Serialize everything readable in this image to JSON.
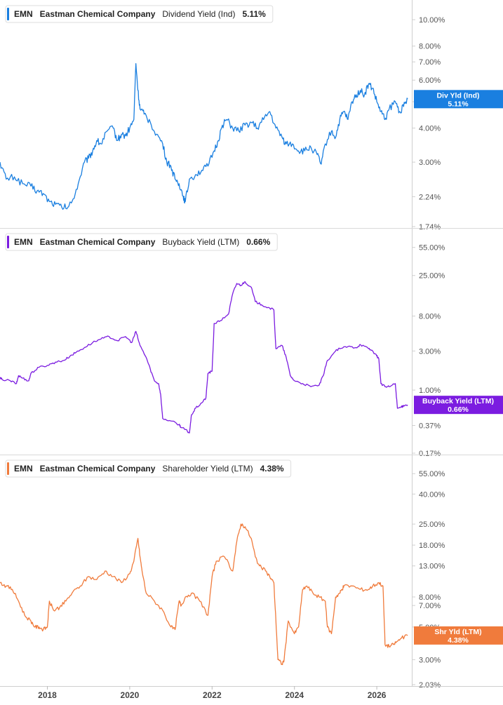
{
  "chart_data": [
    {
      "type": "line",
      "ticker": "EMN",
      "company": "Eastman Chemical Company",
      "metric": "Dividend Yield (Ind)",
      "current": "5.11%",
      "color": "#1a7fe0",
      "scale": "log",
      "ylim": [
        1.74,
        11.0
      ],
      "yticks": [
        "10.00%",
        "8.00%",
        "7.00%",
        "6.00%",
        "5.00%",
        "4.00%",
        "3.00%",
        "2.24%",
        "1.74%"
      ],
      "tag_lines": [
        "Div Yld (Ind)",
        "5.11%"
      ],
      "tag_value": 5.11,
      "series": {
        "x": [
          2016.85,
          2017.0,
          2017.2,
          2017.4,
          2017.6,
          2017.75,
          2017.9,
          2018.05,
          2018.2,
          2018.35,
          2018.5,
          2018.6,
          2018.75,
          2018.9,
          2019.0,
          2019.1,
          2019.2,
          2019.3,
          2019.45,
          2019.6,
          2019.7,
          2019.8,
          2019.9,
          2020.0,
          2020.1,
          2020.15,
          2020.2,
          2020.25,
          2020.35,
          2020.5,
          2020.65,
          2020.8,
          2020.9,
          2021.0,
          2021.1,
          2021.2,
          2021.3,
          2021.35,
          2021.45,
          2021.6,
          2021.75,
          2021.9,
          2022.05,
          2022.15,
          2022.25,
          2022.35,
          2022.5,
          2022.65,
          2022.8,
          2022.95,
          2023.1,
          2023.25,
          2023.4,
          2023.55,
          2023.7,
          2023.8,
          2023.95,
          2024.1,
          2024.25,
          2024.4,
          2024.55,
          2024.65,
          2024.75,
          2024.9,
          2025.0,
          2025.1,
          2025.2,
          2025.3,
          2025.4,
          2025.5,
          2025.6,
          2025.7,
          2025.8,
          2025.9,
          2026.0,
          2026.1,
          2026.2,
          2026.3,
          2026.45,
          2026.55,
          2026.65,
          2026.75
        ],
        "y": [
          3.0,
          2.6,
          2.65,
          2.5,
          2.45,
          2.35,
          2.3,
          2.15,
          2.1,
          2.05,
          2.05,
          2.15,
          2.5,
          3.0,
          3.1,
          3.3,
          3.6,
          3.5,
          3.9,
          4.0,
          3.6,
          3.8,
          3.75,
          4.0,
          4.3,
          6.9,
          5.5,
          4.7,
          4.5,
          4.2,
          3.8,
          3.5,
          3.0,
          2.9,
          2.6,
          2.5,
          2.25,
          2.15,
          2.6,
          2.7,
          2.8,
          2.9,
          3.3,
          3.6,
          4.1,
          4.3,
          4.0,
          3.9,
          4.1,
          4.2,
          4.0,
          4.3,
          4.6,
          4.0,
          3.7,
          3.5,
          3.5,
          3.3,
          3.3,
          3.4,
          3.2,
          2.95,
          3.5,
          3.9,
          3.7,
          4.3,
          4.6,
          4.3,
          5.0,
          5.3,
          5.5,
          5.3,
          5.8,
          5.6,
          5.0,
          4.6,
          4.3,
          4.7,
          5.0,
          4.6,
          4.8,
          5.11
        ]
      }
    },
    {
      "type": "line",
      "ticker": "EMN",
      "company": "Eastman Chemical Company",
      "metric": "Buyback Yield (LTM)",
      "current": "0.66%",
      "color": "#7b1ce0",
      "scale": "log",
      "ylim": [
        0.17,
        75.0
      ],
      "yticks": [
        "55.00%",
        "25.00%",
        "8.00%",
        "3.00%",
        "1.00%",
        "0.37%",
        "0.17%"
      ],
      "tag_lines": [
        "Buyback Yield (LTM)",
        "0.66%"
      ],
      "tag_value": 0.66,
      "series": {
        "x": [
          2016.85,
          2016.9,
          2017.1,
          2017.25,
          2017.3,
          2017.4,
          2017.55,
          2017.6,
          2017.8,
          2018.0,
          2018.2,
          2018.4,
          2018.55,
          2018.7,
          2018.9,
          2019.1,
          2019.3,
          2019.5,
          2019.7,
          2019.9,
          2020.05,
          2020.15,
          2020.25,
          2020.4,
          2020.5,
          2020.6,
          2020.7,
          2020.75,
          2020.8,
          2021.0,
          2021.2,
          2021.25,
          2021.35,
          2021.45,
          2021.5,
          2021.6,
          2021.75,
          2021.85,
          2021.9,
          2022.0,
          2022.05,
          2022.2,
          2022.4,
          2022.5,
          2022.6,
          2022.7,
          2022.8,
          2022.95,
          2023.05,
          2023.2,
          2023.4,
          2023.5,
          2023.55,
          2023.7,
          2023.8,
          2023.9,
          2024.0,
          2024.2,
          2024.4,
          2024.6,
          2024.7,
          2024.8,
          2025.0,
          2025.1,
          2025.3,
          2025.5,
          2025.6,
          2025.8,
          2025.9,
          2026.0,
          2026.05,
          2026.1,
          2026.2,
          2026.3,
          2026.45,
          2026.5,
          2026.6,
          2026.65,
          2026.75
        ],
        "y": [
          1.4,
          1.35,
          1.3,
          1.2,
          1.5,
          1.4,
          1.3,
          1.6,
          1.9,
          2.0,
          2.2,
          2.3,
          2.6,
          2.9,
          3.3,
          3.8,
          4.2,
          4.5,
          4.0,
          4.5,
          3.8,
          5.2,
          3.5,
          2.5,
          1.8,
          1.3,
          1.2,
          0.9,
          0.45,
          0.42,
          0.38,
          0.35,
          0.33,
          0.3,
          0.5,
          0.6,
          0.7,
          0.8,
          1.6,
          1.7,
          6.5,
          7.0,
          8.5,
          15.0,
          20.0,
          19.0,
          21.0,
          18.0,
          12.0,
          11.0,
          10.0,
          9.5,
          3.2,
          3.5,
          2.5,
          1.5,
          1.3,
          1.2,
          1.1,
          1.15,
          1.5,
          2.3,
          3.0,
          3.2,
          3.4,
          3.3,
          3.6,
          3.2,
          3.0,
          2.6,
          2.4,
          1.2,
          1.1,
          1.1,
          1.2,
          0.6,
          0.62,
          0.65,
          0.66
        ]
      }
    },
    {
      "type": "line",
      "ticker": "EMN",
      "company": "Eastman Chemical Company",
      "metric": "Shareholder Yield (LTM)",
      "current": "4.38%",
      "color": "#f07b3c",
      "scale": "log",
      "ylim": [
        2.03,
        65.0
      ],
      "yticks": [
        "55.00%",
        "40.00%",
        "25.00%",
        "18.00%",
        "13.00%",
        "8.00%",
        "7.00%",
        "5.00%",
        "3.00%",
        "2.03%"
      ],
      "tag_lines": [
        "Shr Yld (LTM)",
        "4.38%"
      ],
      "tag_value": 4.38,
      "series": {
        "x": [
          2016.85,
          2017.0,
          2017.15,
          2017.3,
          2017.45,
          2017.6,
          2017.7,
          2017.8,
          2017.9,
          2018.0,
          2018.05,
          2018.15,
          2018.3,
          2018.45,
          2018.6,
          2018.8,
          2019.0,
          2019.2,
          2019.4,
          2019.6,
          2019.8,
          2020.0,
          2020.1,
          2020.2,
          2020.25,
          2020.3,
          2020.4,
          2020.6,
          2020.8,
          2021.0,
          2021.1,
          2021.2,
          2021.25,
          2021.35,
          2021.5,
          2021.7,
          2021.9,
          2022.0,
          2022.1,
          2022.3,
          2022.5,
          2022.6,
          2022.7,
          2022.8,
          2022.95,
          2023.05,
          2023.15,
          2023.3,
          2023.4,
          2023.5,
          2023.55,
          2023.6,
          2023.7,
          2023.75,
          2023.85,
          2024.0,
          2024.1,
          2024.2,
          2024.3,
          2024.45,
          2024.6,
          2024.75,
          2024.8,
          2024.9,
          2025.0,
          2025.1,
          2025.15,
          2025.2,
          2025.4,
          2025.6,
          2025.8,
          2025.9,
          2026.05,
          2026.15,
          2026.2,
          2026.3,
          2026.4,
          2026.5,
          2026.6,
          2026.75
        ],
        "y": [
          10.0,
          9.5,
          9.0,
          7.5,
          6.0,
          5.5,
          5.0,
          5.0,
          4.8,
          5.0,
          7.5,
          6.5,
          6.8,
          7.5,
          8.5,
          9.5,
          11.0,
          10.5,
          12.0,
          11.0,
          10.0,
          11.5,
          14.0,
          20.0,
          15.0,
          12.0,
          8.5,
          7.5,
          6.5,
          5.0,
          4.8,
          7.5,
          7.0,
          8.0,
          8.5,
          7.5,
          6.0,
          11.0,
          14.0,
          15.0,
          12.0,
          19.0,
          25.0,
          24.0,
          20.0,
          15.0,
          13.0,
          12.0,
          11.0,
          10.0,
          5.5,
          3.0,
          2.8,
          3.0,
          5.5,
          4.5,
          5.0,
          9.0,
          9.5,
          8.5,
          8.0,
          7.5,
          5.0,
          4.5,
          8.0,
          8.5,
          9.0,
          9.5,
          9.5,
          9.0,
          9.0,
          9.5,
          10.0,
          9.5,
          3.8,
          3.7,
          3.8,
          4.0,
          4.2,
          4.38
        ]
      }
    }
  ],
  "x_axis": {
    "range": [
      2016.85,
      2026.85
    ],
    "ticks": [
      2018,
      2020,
      2022,
      2024,
      2026
    ],
    "labels": [
      "2018",
      "2020",
      "2022",
      "2024",
      "2026"
    ]
  }
}
